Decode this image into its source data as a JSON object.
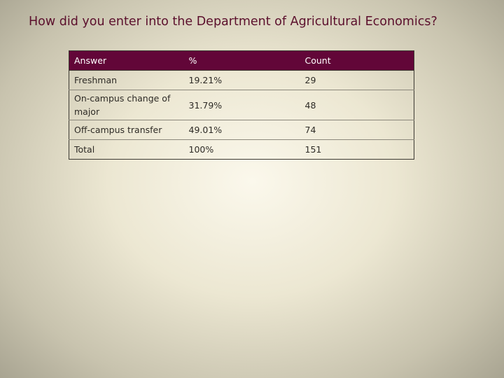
{
  "title": "How did you enter into the Department of Agricultural Economics?",
  "table": {
    "headers": [
      "Answer",
      "%",
      "Count"
    ],
    "rows": [
      [
        "Freshman",
        "19.21%",
        "29"
      ],
      [
        "On-campus change of major",
        "31.79%",
        "48"
      ],
      [
        "Off-campus transfer",
        "49.01%",
        "74"
      ],
      [
        "Total",
        "100%",
        "151"
      ]
    ]
  },
  "colors": {
    "title": "#5b0f2c",
    "header_bg": "#620638",
    "header_text": "#ffffff",
    "border": "#3d3a33"
  }
}
